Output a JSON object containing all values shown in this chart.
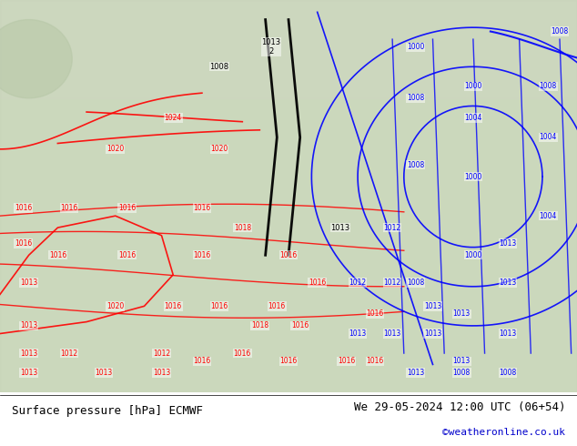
{
  "title_left": "Surface pressure [hPa] ECMWF",
  "title_right": "We 29-05-2024 12:00 UTC (06+54)",
  "watermark": "©weatheronline.co.uk",
  "bg_color": "#d8e8d0",
  "map_bg": "#c8d8c0",
  "text_color_black": "#000000",
  "text_color_blue": "#0000cc",
  "text_color_red": "#cc0000",
  "footer_bg": "#ffffff",
  "fig_width": 6.34,
  "fig_height": 4.9,
  "dpi": 100
}
